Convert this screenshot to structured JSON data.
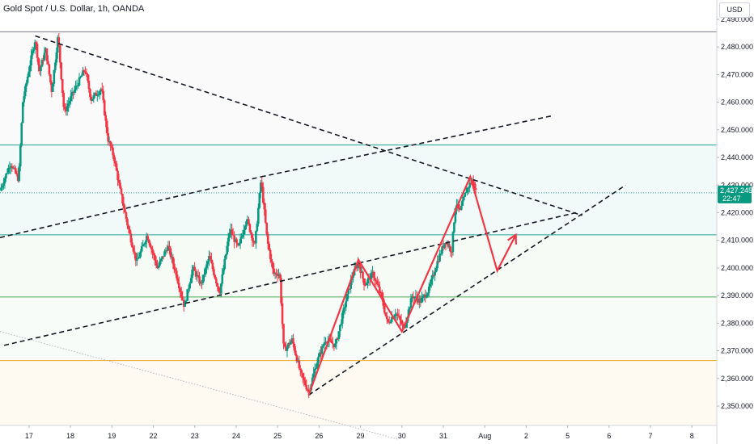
{
  "header": {
    "title": "Gold Spot / U.S. Dollar, 1h, OANDA"
  },
  "currency_button": "USD",
  "price_tag": {
    "price": "2,427.245",
    "countdown": "22:47",
    "color": "#089981"
  },
  "colors": {
    "up": "#089981",
    "down": "#f23645",
    "projection": "#f23645",
    "teal_level": "#26a69a",
    "green_level": "#4caf50",
    "orange_level": "#f5a623",
    "gray_level": "#787b86"
  },
  "chart_data": {
    "type": "candlestick",
    "instrument": "Gold Spot / U.S. Dollar",
    "interval": "1h",
    "source": "OANDA",
    "ylim": [
      2343,
      2497
    ],
    "xlim": [
      0,
      17.3
    ],
    "y_ticks": [
      2350,
      2360,
      2370,
      2380,
      2390,
      2400,
      2410,
      2420,
      2430,
      2440,
      2450,
      2460,
      2470,
      2480,
      2490
    ],
    "y_tick_labels": [
      "2,350.000",
      "2,360.000",
      "2,370.000",
      "2,380.000",
      "2,390.000",
      "2,400.000",
      "2,410.000",
      "2,420.000",
      "2,430.000",
      "2,440.000",
      "2,450.000",
      "2,460.000",
      "2,470.000",
      "2,480.000",
      "2,490.000"
    ],
    "x_ticks": [
      {
        "label": "17",
        "pos": 0.7
      },
      {
        "label": "18",
        "pos": 1.7
      },
      {
        "label": "19",
        "pos": 2.7
      },
      {
        "label": "22",
        "pos": 3.7
      },
      {
        "label": "23",
        "pos": 4.7
      },
      {
        "label": "24",
        "pos": 5.7
      },
      {
        "label": "25",
        "pos": 6.7
      },
      {
        "label": "26",
        "pos": 7.7
      },
      {
        "label": "29",
        "pos": 8.7
      },
      {
        "label": "30",
        "pos": 9.7
      },
      {
        "label": "31",
        "pos": 10.7
      },
      {
        "label": "Aug",
        "pos": 11.7
      },
      {
        "label": "2",
        "pos": 12.7
      },
      {
        "label": "5",
        "pos": 13.7
      },
      {
        "label": "6",
        "pos": 14.7
      },
      {
        "label": "7",
        "pos": 15.7
      },
      {
        "label": "8",
        "pos": 16.7
      }
    ],
    "price_path": [
      [
        0.0,
        2428
      ],
      [
        0.25,
        2438
      ],
      [
        0.45,
        2432
      ],
      [
        0.55,
        2460
      ],
      [
        0.7,
        2472
      ],
      [
        0.85,
        2483
      ],
      [
        0.95,
        2471
      ],
      [
        1.1,
        2479
      ],
      [
        1.25,
        2464
      ],
      [
        1.4,
        2484
      ],
      [
        1.55,
        2456
      ],
      [
        1.75,
        2463
      ],
      [
        2.05,
        2472
      ],
      [
        2.2,
        2461
      ],
      [
        2.45,
        2465
      ],
      [
        2.6,
        2447
      ],
      [
        2.75,
        2440
      ],
      [
        2.9,
        2428
      ],
      [
        3.1,
        2414
      ],
      [
        3.3,
        2402
      ],
      [
        3.55,
        2412
      ],
      [
        3.8,
        2400
      ],
      [
        4.05,
        2408
      ],
      [
        4.25,
        2398
      ],
      [
        4.45,
        2386
      ],
      [
        4.65,
        2400
      ],
      [
        4.85,
        2394
      ],
      [
        5.05,
        2404
      ],
      [
        5.3,
        2391
      ],
      [
        5.55,
        2414
      ],
      [
        5.75,
        2407
      ],
      [
        5.95,
        2418
      ],
      [
        6.15,
        2408
      ],
      [
        6.3,
        2432
      ],
      [
        6.45,
        2410
      ],
      [
        6.6,
        2398
      ],
      [
        6.75,
        2398
      ],
      [
        6.85,
        2370
      ],
      [
        7.05,
        2374
      ],
      [
        7.25,
        2362
      ],
      [
        7.45,
        2355
      ],
      [
        7.65,
        2366
      ],
      [
        7.85,
        2374
      ],
      [
        8.1,
        2372
      ],
      [
        8.3,
        2385
      ],
      [
        8.5,
        2397
      ],
      [
        8.65,
        2402
      ],
      [
        8.8,
        2394
      ],
      [
        9.0,
        2398
      ],
      [
        9.2,
        2390
      ],
      [
        9.35,
        2380
      ],
      [
        9.55,
        2384
      ],
      [
        9.75,
        2378
      ],
      [
        9.95,
        2390
      ],
      [
        10.15,
        2388
      ],
      [
        10.35,
        2392
      ],
      [
        10.55,
        2402
      ],
      [
        10.75,
        2410
      ],
      [
        10.9,
        2406
      ],
      [
        11.0,
        2424
      ],
      [
        11.1,
        2420
      ],
      [
        11.25,
        2428
      ],
      [
        11.4,
        2432
      ],
      [
        11.5,
        2427.2
      ]
    ],
    "horizontal_levels": [
      {
        "price": 2485.5,
        "color": "#787b86",
        "style": "solid"
      },
      {
        "price": 2444.5,
        "color": "#26a69a",
        "style": "solid"
      },
      {
        "price": 2427.2,
        "color": "#26a69a",
        "style": "dotted"
      },
      {
        "price": 2412.0,
        "color": "#26a69a",
        "style": "solid"
      },
      {
        "price": 2389.5,
        "color": "#4caf50",
        "style": "solid"
      },
      {
        "price": 2366.5,
        "color": "#f5a623",
        "style": "solid"
      }
    ],
    "trendlines": [
      {
        "from": [
          0.85,
          2484
        ],
        "to": [
          14.05,
          2419
        ],
        "style": "dashed"
      },
      {
        "from": [
          0.0,
          2411
        ],
        "to": [
          6.3,
          2433
        ],
        "style": "dashed"
      },
      {
        "from": [
          6.3,
          2433
        ],
        "to": [
          13.3,
          2455
        ],
        "style": "dashed"
      },
      {
        "from": [
          0.1,
          2372
        ],
        "to": [
          13.9,
          2420
        ],
        "style": "dashed"
      },
      {
        "from": [
          7.45,
          2354
        ],
        "to": [
          15.1,
          2430
        ],
        "style": "dashed"
      },
      {
        "from": [
          0.0,
          2377
        ],
        "to": [
          9.6,
          2338
        ],
        "style": "dotted"
      }
    ],
    "projection_path": [
      [
        7.45,
        2354
      ],
      [
        8.65,
        2403
      ],
      [
        9.7,
        2377
      ],
      [
        11.35,
        2433
      ],
      [
        12.0,
        2399
      ],
      [
        12.45,
        2412
      ]
    ]
  }
}
